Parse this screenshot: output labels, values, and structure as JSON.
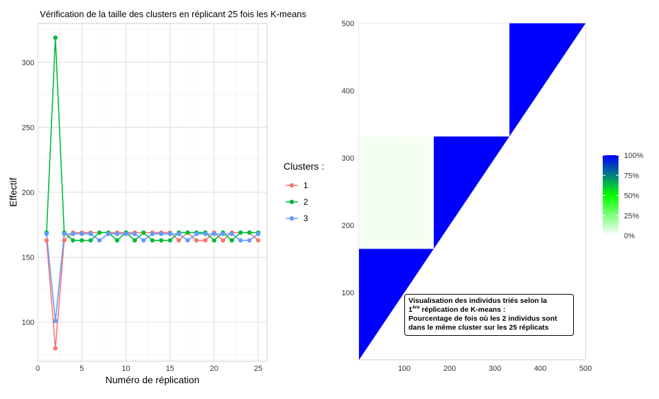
{
  "chart_data": [
    {
      "type": "line",
      "title": "Vérification de la taille des clusters en réplicant 25 fois les K-means",
      "xlabel": "Numéro de réplication",
      "ylabel": "Effectif",
      "xlim": [
        0,
        26
      ],
      "ylim": [
        70,
        330
      ],
      "xticks": [
        0,
        5,
        10,
        15,
        20,
        25
      ],
      "yticks": [
        100,
        150,
        200,
        250,
        300
      ],
      "grid": true,
      "x": [
        1,
        2,
        3,
        4,
        5,
        6,
        7,
        8,
        9,
        10,
        11,
        12,
        13,
        14,
        15,
        16,
        17,
        18,
        19,
        20,
        21,
        22,
        23,
        24,
        25
      ],
      "legend": {
        "title": "Clusters :",
        "placement": "right"
      },
      "series": [
        {
          "name": "1",
          "color": "#F8766D",
          "values": [
            163,
            80,
            163,
            169,
            169,
            169,
            169,
            169,
            169,
            169,
            169,
            169,
            169,
            169,
            169,
            163,
            169,
            163,
            163,
            169,
            163,
            169,
            169,
            169,
            163
          ]
        },
        {
          "name": "2",
          "color": "#00BA38",
          "values": [
            169,
            319,
            169,
            163,
            163,
            163,
            169,
            169,
            163,
            169,
            163,
            169,
            163,
            163,
            163,
            169,
            169,
            169,
            169,
            163,
            169,
            163,
            169,
            169,
            169
          ]
        },
        {
          "name": "3",
          "color": "#619CFF",
          "values": [
            168,
            101,
            168,
            168,
            168,
            168,
            163,
            168,
            168,
            168,
            168,
            163,
            168,
            168,
            168,
            168,
            163,
            168,
            168,
            168,
            168,
            168,
            163,
            163,
            168
          ]
        }
      ]
    },
    {
      "type": "heatmap",
      "title": "",
      "xlim": [
        0,
        500
      ],
      "ylim": [
        0,
        500
      ],
      "xticks": [
        100,
        200,
        300,
        400,
        500
      ],
      "yticks": [
        100,
        200,
        300,
        400,
        500
      ],
      "blocks": [
        {
          "x": [
            0,
            165
          ],
          "y": [
            0,
            165
          ],
          "value": 100
        },
        {
          "x": [
            0,
            165
          ],
          "y": [
            165,
            332
          ],
          "value": 2
        },
        {
          "x": [
            0,
            165
          ],
          "y": [
            332,
            500
          ],
          "value": 0
        },
        {
          "x": [
            165,
            332
          ],
          "y": [
            165,
            332
          ],
          "value": 100
        },
        {
          "x": [
            165,
            332
          ],
          "y": [
            332,
            500
          ],
          "value": 0
        },
        {
          "x": [
            332,
            500
          ],
          "y": [
            332,
            500
          ],
          "value": 100
        }
      ],
      "colorbar": {
        "labels": [
          "100%",
          "75%",
          "50%",
          "25%",
          "0%"
        ],
        "colors": {
          "low": "#ffffff",
          "mid": "#00ff00",
          "high": "#0000ff"
        }
      },
      "annotation": {
        "line1": "Visualisation des individus triés selon la",
        "line2_prefix": "1",
        "line2_sup": "ère",
        "line2_suffix": " réplication de K-means :",
        "line3": "Pourcentage de fois où les 2 individus sont",
        "line4": "dans le même cluster sur les 25 réplicats"
      }
    }
  ]
}
